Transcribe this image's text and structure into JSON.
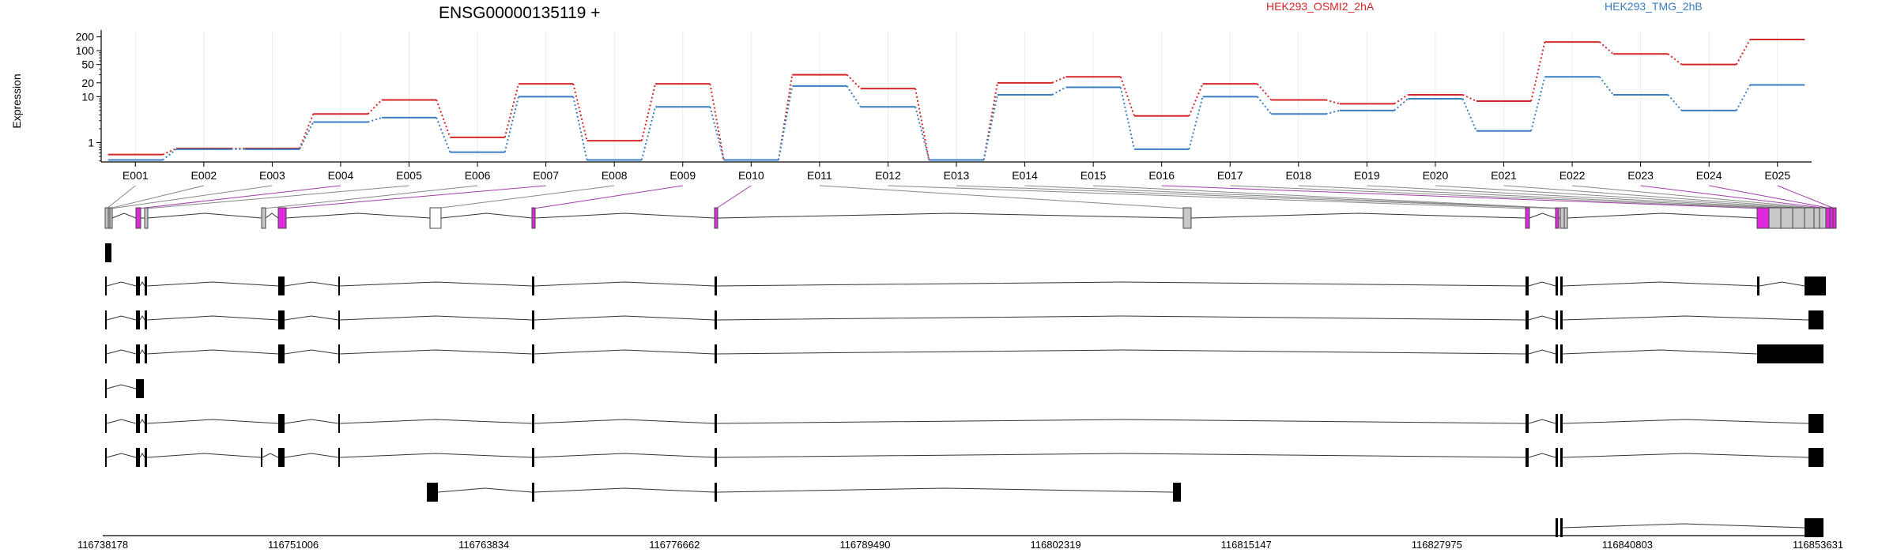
{
  "chart_data": {
    "type": "line",
    "title": "ENSG00000135119 +",
    "ylabel": "Expression",
    "yscale": "log",
    "ylim": [
      0.38,
      260
    ],
    "y_ticks": [
      1,
      10,
      20,
      50,
      100,
      200
    ],
    "y_tick_labels": [
      "1",
      "10",
      "20",
      "50",
      "100",
      "200"
    ],
    "categories": [
      "E001",
      "E002",
      "E003",
      "E004",
      "E005",
      "E006",
      "E007",
      "E008",
      "E009",
      "E010",
      "E011",
      "E012",
      "E013",
      "E014",
      "E015",
      "E016",
      "E017",
      "E018",
      "E019",
      "E020",
      "E021",
      "E022",
      "E023",
      "E024",
      "E025"
    ],
    "series": [
      {
        "name": "HEK293_OSMI2_2hA",
        "color": "#d62728",
        "values": [
          0.55,
          0.75,
          0.75,
          4.2,
          8.5,
          1.3,
          19,
          1.1,
          19,
          0.42,
          30,
          15,
          0.42,
          20,
          27,
          3.8,
          19,
          8.5,
          7.0,
          11,
          8.0,
          155,
          85,
          50,
          175
        ]
      },
      {
        "name": "HEK293_TMG_2hB",
        "color": "#3a7dc0",
        "values": [
          0.42,
          0.72,
          0.72,
          2.8,
          3.5,
          0.62,
          10,
          0.42,
          6.0,
          0.42,
          17,
          6.0,
          0.42,
          11,
          16,
          0.72,
          10,
          4.2,
          5.0,
          9.0,
          1.8,
          27,
          11,
          5.0,
          18
        ]
      }
    ],
    "grid": "vertical",
    "legend": "top-right",
    "genomic_ticks": [
      "116738178",
      "116751006",
      "116763834",
      "116776662",
      "116789490",
      "116802319",
      "116815147",
      "116827975",
      "116840803",
      "116853631"
    ],
    "exon_colors": [
      "grey",
      "grey",
      "grey",
      "magenta",
      "grey",
      "grey",
      "magenta",
      "white",
      "magenta",
      "magenta",
      "grey",
      "magenta",
      "magenta",
      "grey",
      "grey",
      "magenta",
      "grey",
      "grey",
      "grey",
      "grey",
      "grey",
      "grey",
      "magenta",
      "magenta",
      "magenta"
    ],
    "transcripts": [
      {
        "exons": [
          1,
          2
        ]
      },
      {
        "exons": [
          1,
          4,
          5,
          6,
          7,
          8,
          9,
          17,
          18,
          19,
          20,
          21,
          24
        ]
      },
      {
        "exons": [
          1,
          4,
          5,
          6,
          7,
          8,
          9,
          17,
          18,
          19,
          20,
          21,
          22
        ]
      },
      {
        "exons": [
          1,
          4,
          5,
          6,
          7,
          8,
          9,
          17,
          18,
          19,
          20,
          21,
          23
        ]
      },
      {
        "exons": [
          1,
          4
        ]
      },
      {
        "exons": [
          1,
          4,
          5,
          6,
          7,
          8,
          9,
          17,
          18,
          19,
          20,
          21,
          22
        ]
      },
      {
        "exons": [
          1,
          4,
          5,
          6,
          7,
          8,
          9,
          17,
          18,
          19,
          20,
          21,
          22
        ]
      },
      {
        "exons": [
          11,
          12,
          13,
          16
        ]
      },
      {
        "exons": [
          20,
          21,
          22
        ]
      }
    ]
  }
}
